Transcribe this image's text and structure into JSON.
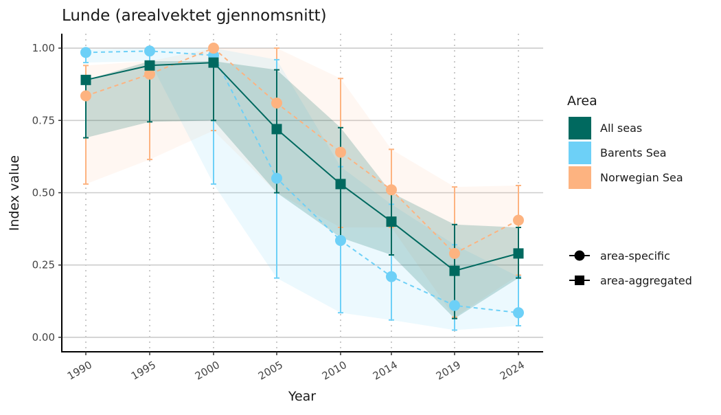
{
  "chart_data": {
    "type": "line",
    "title": "Lunde (arealvektet gjennomsnitt)",
    "xlabel": "Year",
    "ylabel": "Index value",
    "categories": [
      "1990",
      "1995",
      "2000",
      "2005",
      "2010",
      "2014",
      "2019",
      "2024"
    ],
    "ylim": [
      -0.05,
      1.05
    ],
    "yticks": [
      0.0,
      0.25,
      0.5,
      0.75,
      1.0
    ],
    "ytick_labels": [
      "0.00",
      "0.25",
      "0.50",
      "0.75",
      "1.00"
    ],
    "grid": {
      "horizontal": true,
      "vertical_dotted": true
    },
    "legend": {
      "placement": "right",
      "area_title": "Area",
      "area_entries": [
        "All seas",
        "Barents Sea",
        "Norwegian Sea"
      ],
      "shape_entries": [
        "area-specific",
        "area-aggregated"
      ]
    },
    "series": [
      {
        "name": "All seas",
        "color": "#00695f",
        "marker": "square",
        "line_style": "solid",
        "values": [
          0.89,
          0.94,
          0.95,
          0.72,
          0.53,
          0.4,
          0.23,
          0.29
        ],
        "lower": [
          0.69,
          0.745,
          0.75,
          0.5,
          0.345,
          0.285,
          0.065,
          0.205
        ],
        "upper": [
          0.89,
          0.955,
          0.955,
          0.925,
          0.725,
          0.5,
          0.39,
          0.38
        ]
      },
      {
        "name": "Barents Sea",
        "color": "#6dd0f7",
        "marker": "circle",
        "line_style": "dashed",
        "values": [
          0.985,
          0.99,
          0.975,
          0.55,
          0.335,
          0.21,
          0.11,
          0.085
        ],
        "lower": [
          0.95,
          0.955,
          0.53,
          0.205,
          0.085,
          0.06,
          0.025,
          0.04
        ],
        "upper": [
          0.995,
          1.0,
          1.0,
          0.96,
          0.59,
          0.46,
          0.32,
          0.21
        ]
      },
      {
        "name": "Norwegian Sea",
        "color": "#fdb380",
        "marker": "circle",
        "line_style": "dashed",
        "values": [
          0.835,
          0.91,
          1.0,
          0.81,
          0.64,
          0.51,
          0.29,
          0.405
        ],
        "lower": [
          0.53,
          0.615,
          0.715,
          0.5,
          0.38,
          0.38,
          0.07,
          0.215
        ],
        "upper": [
          0.94,
          0.955,
          1.0,
          1.0,
          0.895,
          0.65,
          0.52,
          0.525
        ]
      }
    ]
  }
}
